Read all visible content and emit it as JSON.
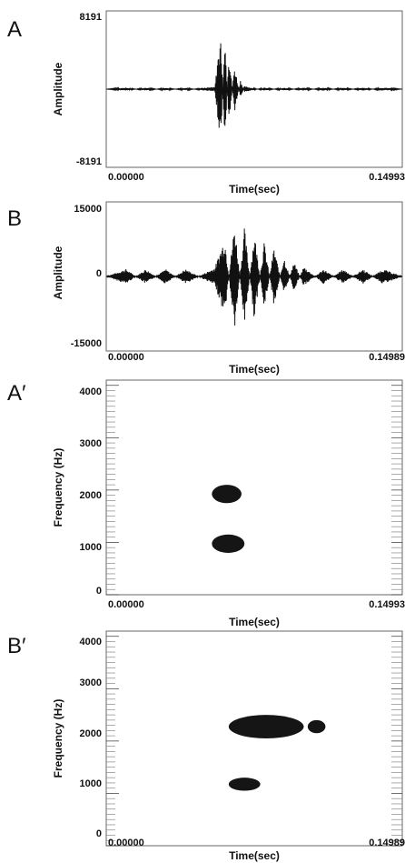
{
  "chart_data": [
    {
      "panel": "A",
      "type": "line",
      "xlabel": "Time(sec)",
      "ylabel": "Amplitude",
      "xlim": [
        0.0,
        0.14993
      ],
      "ylim": [
        -8191,
        8191
      ],
      "x_tick_labels": [
        "0.00000",
        "0.14993"
      ],
      "y_tick_labels": [
        "8191",
        "-8191"
      ],
      "series": [
        {
          "points": [
            [
              0.0,
              0
            ],
            [
              0.01,
              150
            ],
            [
              0.02,
              -150
            ],
            [
              0.03,
              120
            ],
            [
              0.04,
              -120
            ],
            [
              0.05,
              150
            ],
            [
              0.055,
              250
            ],
            [
              0.058,
              5800
            ],
            [
              0.06,
              -6500
            ],
            [
              0.062,
              4000
            ],
            [
              0.065,
              -2500
            ],
            [
              0.068,
              1000
            ],
            [
              0.07,
              -300
            ],
            [
              0.08,
              150
            ],
            [
              0.09,
              -150
            ],
            [
              0.1,
              150
            ],
            [
              0.11,
              -150
            ],
            [
              0.12,
              150
            ],
            [
              0.13,
              -150
            ],
            [
              0.14,
              150
            ],
            [
              0.14993,
              0
            ]
          ]
        }
      ]
    },
    {
      "panel": "B",
      "type": "line",
      "xlabel": "Time(sec)",
      "ylabel": "Amplitude",
      "xlim": [
        0.0,
        0.14989
      ],
      "ylim": [
        -15000,
        15000
      ],
      "x_tick_labels": [
        "0.00000",
        "0.14989"
      ],
      "y_tick_labels": [
        "15000",
        "0",
        "-15000"
      ],
      "series": [
        {
          "points": [
            [
              0.0,
              0
            ],
            [
              0.01,
              1500
            ],
            [
              0.02,
              -1500
            ],
            [
              0.03,
              1500
            ],
            [
              0.04,
              -1500
            ],
            [
              0.055,
              1800
            ],
            [
              0.06,
              8000
            ],
            [
              0.065,
              -11000
            ],
            [
              0.07,
              10000
            ],
            [
              0.075,
              -9000
            ],
            [
              0.08,
              7000
            ],
            [
              0.085,
              -6000
            ],
            [
              0.09,
              4000
            ],
            [
              0.095,
              -3000
            ],
            [
              0.1,
              2000
            ],
            [
              0.11,
              -1500
            ],
            [
              0.12,
              1500
            ],
            [
              0.13,
              -1500
            ],
            [
              0.14,
              1500
            ],
            [
              0.14989,
              0
            ]
          ]
        }
      ]
    },
    {
      "panel": "A′",
      "type": "heatmap",
      "xlabel": "Time(sec)",
      "ylabel": "Frequency (Hz)",
      "xlim": [
        0.0,
        0.14993
      ],
      "ylim": [
        0,
        4100
      ],
      "x_tick_labels": [
        "0.00000",
        "0.14993"
      ],
      "y_tick_labels": [
        "4000",
        "3000",
        "2000",
        "1000",
        "0"
      ],
      "blobs": [
        {
          "t_start": 0.0535,
          "t_end": 0.0685,
          "f_low": 1750,
          "f_high": 2100
        },
        {
          "t_start": 0.0535,
          "t_end": 0.07,
          "f_low": 800,
          "f_high": 1150
        }
      ]
    },
    {
      "panel": "B′",
      "type": "heatmap",
      "xlabel": "Time(sec)",
      "ylabel": "Frequency (Hz)",
      "xlim": [
        0.0,
        0.14989
      ],
      "ylim": [
        0,
        4100
      ],
      "x_tick_labels": [
        "0.00000",
        "0.14989"
      ],
      "y_tick_labels": [
        "4000",
        "3000",
        "2000",
        "1000",
        "0"
      ],
      "blobs": [
        {
          "t_start": 0.062,
          "t_end": 0.1,
          "f_low": 2050,
          "f_high": 2500
        },
        {
          "t_start": 0.102,
          "t_end": 0.111,
          "f_low": 2150,
          "f_high": 2400
        },
        {
          "t_start": 0.062,
          "t_end": 0.078,
          "f_low": 1050,
          "f_high": 1300
        }
      ]
    }
  ],
  "panels": {
    "A": "A",
    "B": "B",
    "A2": "A′",
    "B2": "B′"
  }
}
